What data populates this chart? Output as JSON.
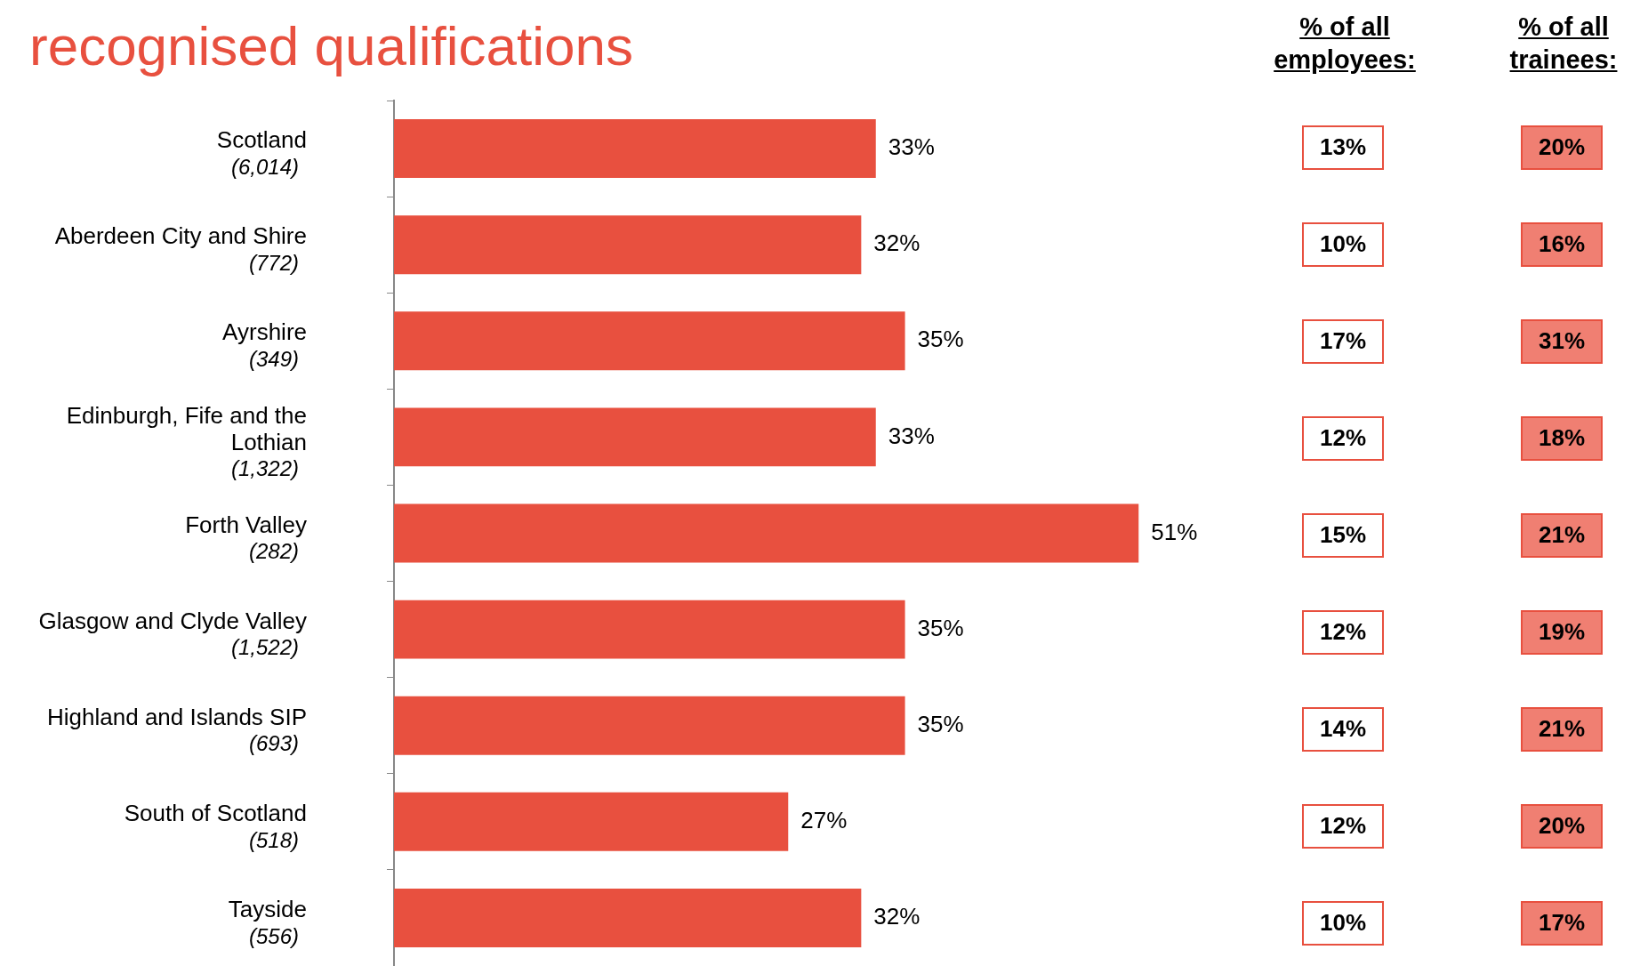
{
  "chart_data": [
    {
      "type": "bar",
      "title": "recognised qualifications",
      "orientation": "horizontal",
      "categories": [
        "Scotland (6,014)",
        "Aberdeen City and Shire (772)",
        "Ayrshire (349)",
        "Edinburgh, Fife and the Lothian (1,322)",
        "Forth Valley (282)",
        "Glasgow and Clyde Valley (1,522)",
        "Highland and Islands SIP (693)",
        "South of Scotland (518)",
        "Tayside (556)"
      ],
      "values": [
        33,
        32,
        35,
        33,
        51,
        35,
        35,
        27,
        32
      ],
      "value_labels": [
        "33%",
        "32%",
        "35%",
        "33%",
        "51%",
        "35%",
        "35%",
        "27%",
        "32%"
      ],
      "color": "#e8503f",
      "grid": false,
      "legend": false
    },
    {
      "type": "other",
      "title": "% of all employees:",
      "annotations": [
        "13%",
        "10%",
        "17%",
        "12%",
        "15%",
        "12%",
        "14%",
        "12%",
        "10%"
      ]
    },
    {
      "type": "other",
      "title": "% of all trainees:",
      "annotations": [
        "20%",
        "16%",
        "31%",
        "18%",
        "21%",
        "19%",
        "21%",
        "20%",
        "17%"
      ]
    }
  ]
}
